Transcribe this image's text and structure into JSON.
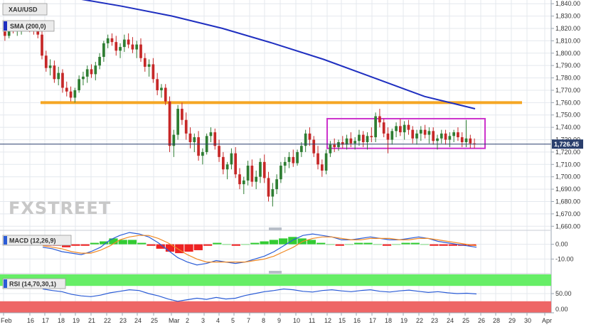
{
  "header": {
    "symbol": "XAU/USD",
    "indicator": "SMA (200,0)",
    "last_price": "1,726.45",
    "watermark": "FXSTREET"
  },
  "colors": {
    "sma": "#1f2fc0",
    "bull": "#2e7d32",
    "bear": "#c62828",
    "resistance": "#f5a623",
    "range_box": "#cc33cc",
    "price_line": "#2a3f6d",
    "macd_line": "#2b5cd6",
    "signal_line": "#f08a24",
    "hist_pos": "#33cc33",
    "hist_neg": "#ee2222",
    "rsi_line": "#2b5cd6",
    "rsi_over": "#66ee66",
    "rsi_under": "#ee6666"
  },
  "chart_data": [
    {
      "type": "candlestick",
      "title": "XAU/USD",
      "x_labels": [
        "Feb",
        "16",
        "17",
        "18",
        "19",
        "21",
        "22",
        "23",
        "24",
        "25",
        "Mar",
        "2",
        "3",
        "4",
        "5",
        "7",
        "8",
        "9",
        "10",
        "11",
        "12",
        "15",
        "16",
        "17",
        "18",
        "19",
        "22",
        "23",
        "24",
        "25",
        "26",
        "28",
        "29",
        "30",
        "Apr"
      ],
      "yticks": [
        "1,840.00",
        "1,830.00",
        "1,820.00",
        "1,810.00",
        "1,800.00",
        "1,790.00",
        "1,780.00",
        "1,770.00",
        "1,760.00",
        "1,750.00",
        "1,740.00",
        "1,730.00",
        "1,720.00",
        "1,710.00",
        "1,700.00",
        "1,690.00",
        "1,680.00",
        "1,670.00",
        "1,660.00"
      ],
      "ylim": [
        1659,
        1843
      ],
      "last_price": 1726.45,
      "resistance_level": 1760,
      "range_box": {
        "start": "12",
        "end": "26",
        "low": 1723,
        "high": 1747
      },
      "candles": [
        [
          1818,
          1822,
          1810,
          1814
        ],
        [
          1814,
          1824,
          1812,
          1821
        ],
        [
          1821,
          1824,
          1816,
          1818
        ],
        [
          1818,
          1822,
          1814,
          1819
        ],
        [
          1819,
          1825,
          1815,
          1821
        ],
        [
          1821,
          1823,
          1818,
          1822
        ],
        [
          1822,
          1826,
          1817,
          1821
        ],
        [
          1821,
          1824,
          1815,
          1818
        ],
        [
          1818,
          1822,
          1812,
          1815
        ],
        [
          1815,
          1818,
          1795,
          1798
        ],
        [
          1798,
          1802,
          1785,
          1788
        ],
        [
          1788,
          1795,
          1782,
          1790
        ],
        [
          1790,
          1794,
          1776,
          1779
        ],
        [
          1779,
          1789,
          1774,
          1784
        ],
        [
          1784,
          1787,
          1768,
          1772
        ],
        [
          1772,
          1777,
          1765,
          1769
        ],
        [
          1769,
          1773,
          1761,
          1764
        ],
        [
          1764,
          1772,
          1760,
          1770
        ],
        [
          1770,
          1782,
          1768,
          1779
        ],
        [
          1779,
          1785,
          1774,
          1781
        ],
        [
          1781,
          1790,
          1776,
          1787
        ],
        [
          1787,
          1791,
          1780,
          1783
        ],
        [
          1783,
          1793,
          1778,
          1790
        ],
        [
          1790,
          1800,
          1787,
          1797
        ],
        [
          1797,
          1810,
          1793,
          1808
        ],
        [
          1808,
          1815,
          1804,
          1812
        ],
        [
          1812,
          1816,
          1806,
          1809
        ],
        [
          1809,
          1814,
          1798,
          1802
        ],
        [
          1802,
          1808,
          1796,
          1805
        ],
        [
          1805,
          1815,
          1801,
          1811
        ],
        [
          1811,
          1816,
          1804,
          1807
        ],
        [
          1807,
          1813,
          1800,
          1803
        ],
        [
          1803,
          1810,
          1796,
          1807
        ],
        [
          1807,
          1812,
          1793,
          1796
        ],
        [
          1796,
          1800,
          1785,
          1789
        ],
        [
          1789,
          1795,
          1781,
          1791
        ],
        [
          1791,
          1796,
          1776,
          1779
        ],
        [
          1779,
          1784,
          1766,
          1770
        ],
        [
          1770,
          1775,
          1764,
          1772
        ],
        [
          1772,
          1775,
          1758,
          1761
        ],
        [
          1761,
          1765,
          1720,
          1725
        ],
        [
          1725,
          1738,
          1716,
          1734
        ],
        [
          1734,
          1758,
          1730,
          1755
        ],
        [
          1755,
          1760,
          1742,
          1746
        ],
        [
          1746,
          1752,
          1730,
          1735
        ],
        [
          1735,
          1740,
          1723,
          1728
        ],
        [
          1728,
          1735,
          1720,
          1732
        ],
        [
          1732,
          1737,
          1713,
          1717
        ],
        [
          1717,
          1723,
          1710,
          1720
        ],
        [
          1720,
          1735,
          1718,
          1733
        ],
        [
          1733,
          1740,
          1728,
          1736
        ],
        [
          1736,
          1739,
          1722,
          1725
        ],
        [
          1725,
          1730,
          1712,
          1716
        ],
        [
          1716,
          1720,
          1702,
          1706
        ],
        [
          1706,
          1712,
          1698,
          1710
        ],
        [
          1710,
          1723,
          1706,
          1719
        ],
        [
          1719,
          1724,
          1699,
          1702
        ],
        [
          1702,
          1707,
          1690,
          1694
        ],
        [
          1694,
          1700,
          1686,
          1697
        ],
        [
          1697,
          1713,
          1693,
          1709
        ],
        [
          1709,
          1714,
          1692,
          1696
        ],
        [
          1696,
          1705,
          1690,
          1700
        ],
        [
          1700,
          1715,
          1695,
          1712
        ],
        [
          1712,
          1718,
          1695,
          1699
        ],
        [
          1699,
          1704,
          1680,
          1684
        ],
        [
          1684,
          1695,
          1676,
          1690
        ],
        [
          1690,
          1702,
          1686,
          1698
        ],
        [
          1698,
          1712,
          1695,
          1709
        ],
        [
          1709,
          1716,
          1703,
          1712
        ],
        [
          1712,
          1720,
          1707,
          1716
        ],
        [
          1716,
          1722,
          1708,
          1711
        ],
        [
          1711,
          1722,
          1709,
          1720
        ],
        [
          1720,
          1728,
          1716,
          1725
        ],
        [
          1725,
          1738,
          1720,
          1735
        ],
        [
          1735,
          1740,
          1725,
          1730
        ],
        [
          1730,
          1733,
          1716,
          1719
        ],
        [
          1719,
          1725,
          1706,
          1710
        ],
        [
          1710,
          1714,
          1700,
          1705
        ],
        [
          1705,
          1722,
          1702,
          1719
        ],
        [
          1719,
          1729,
          1716,
          1726
        ],
        [
          1726,
          1731,
          1720,
          1724
        ],
        [
          1724,
          1730,
          1721,
          1728
        ],
        [
          1728,
          1733,
          1723,
          1726
        ],
        [
          1726,
          1734,
          1722,
          1731
        ],
        [
          1731,
          1736,
          1724,
          1727
        ],
        [
          1727,
          1732,
          1722,
          1729
        ],
        [
          1729,
          1738,
          1725,
          1734
        ],
        [
          1734,
          1737,
          1724,
          1728
        ],
        [
          1728,
          1736,
          1722,
          1733
        ],
        [
          1733,
          1740,
          1728,
          1732
        ],
        [
          1732,
          1752,
          1728,
          1749
        ],
        [
          1749,
          1755,
          1740,
          1744
        ],
        [
          1744,
          1747,
          1732,
          1735
        ],
        [
          1735,
          1740,
          1719,
          1730
        ],
        [
          1730,
          1739,
          1726,
          1737
        ],
        [
          1737,
          1744,
          1732,
          1741
        ],
        [
          1741,
          1747,
          1733,
          1736
        ],
        [
          1736,
          1745,
          1730,
          1742
        ],
        [
          1742,
          1746,
          1734,
          1738
        ],
        [
          1738,
          1741,
          1727,
          1731
        ],
        [
          1731,
          1738,
          1726,
          1735
        ],
        [
          1735,
          1741,
          1729,
          1738
        ],
        [
          1738,
          1742,
          1731,
          1734
        ],
        [
          1734,
          1740,
          1727,
          1737
        ],
        [
          1737,
          1740,
          1726,
          1729
        ],
        [
          1729,
          1734,
          1722,
          1731
        ],
        [
          1731,
          1738,
          1727,
          1735
        ],
        [
          1735,
          1738,
          1726,
          1730
        ],
        [
          1730,
          1736,
          1724,
          1733
        ],
        [
          1733,
          1738,
          1728,
          1736
        ],
        [
          1736,
          1740,
          1729,
          1732
        ],
        [
          1732,
          1736,
          1724,
          1728
        ],
        [
          1728,
          1746,
          1724,
          1731
        ],
        [
          1731,
          1734,
          1723,
          1727
        ],
        [
          1727,
          1731,
          1723,
          1726.45
        ]
      ],
      "sma_200": [
        1845,
        1838,
        1830,
        1820,
        1808,
        1795,
        1780,
        1765,
        1755
      ],
      "grid": true
    },
    {
      "type": "line",
      "title": "MACD (12,26,9)",
      "yticks": [
        "0.00",
        "-10.00"
      ],
      "ylim": [
        -18,
        9
      ],
      "series": [
        {
          "name": "MACD",
          "values": [
            -2,
            -3,
            -5,
            -6,
            -7,
            -5,
            -2,
            3,
            6,
            8,
            7,
            5,
            1,
            -4,
            -9,
            -12,
            -14,
            -13,
            -11,
            -12,
            -13,
            -12,
            -10,
            -8,
            -5,
            -1,
            3,
            6,
            7,
            6,
            5,
            3,
            3,
            4,
            5,
            4,
            3,
            3,
            4,
            5,
            4,
            2,
            1,
            0,
            -1,
            -2
          ]
        },
        {
          "name": "Signal",
          "values": [
            -1,
            -2,
            -3,
            -5,
            -6,
            -6,
            -4,
            -1,
            3,
            5,
            6,
            6,
            4,
            1,
            -3,
            -7,
            -10,
            -12,
            -12,
            -12,
            -12,
            -12,
            -11,
            -10,
            -8,
            -5,
            -2,
            2,
            4,
            5,
            5,
            4,
            3,
            3,
            4,
            4,
            4,
            3,
            3,
            4,
            4,
            3,
            2,
            1,
            0,
            -1
          ]
        }
      ],
      "histogram": [
        -1,
        -1,
        -2,
        -1,
        -1,
        1,
        2,
        4,
        3,
        3,
        1,
        -1,
        -3,
        -5,
        -6,
        -5,
        -4,
        -1,
        1,
        0,
        -1,
        0,
        1,
        2,
        3,
        4,
        5,
        4,
        3,
        1,
        0,
        -1,
        0,
        1,
        1,
        0,
        -1,
        0,
        1,
        1,
        0,
        -1,
        -1,
        -1,
        -1,
        -1
      ]
    },
    {
      "type": "line",
      "title": "RSI (14,70,30,1)",
      "yticks": [
        "50.00",
        "0.00"
      ],
      "ylim": [
        0,
        100
      ],
      "bands": {
        "overbought": 70,
        "oversold": 30
      },
      "series": [
        {
          "name": "RSI",
          "values": [
            62,
            58,
            55,
            48,
            44,
            42,
            46,
            52,
            56,
            60,
            58,
            50,
            44,
            36,
            30,
            34,
            38,
            35,
            40,
            36,
            38,
            45,
            50,
            55,
            58,
            62,
            60,
            56,
            54,
            58,
            60,
            57,
            55,
            58,
            60,
            56,
            54,
            57,
            59,
            56,
            53,
            55,
            52,
            50,
            51,
            49
          ]
        }
      ]
    }
  ]
}
